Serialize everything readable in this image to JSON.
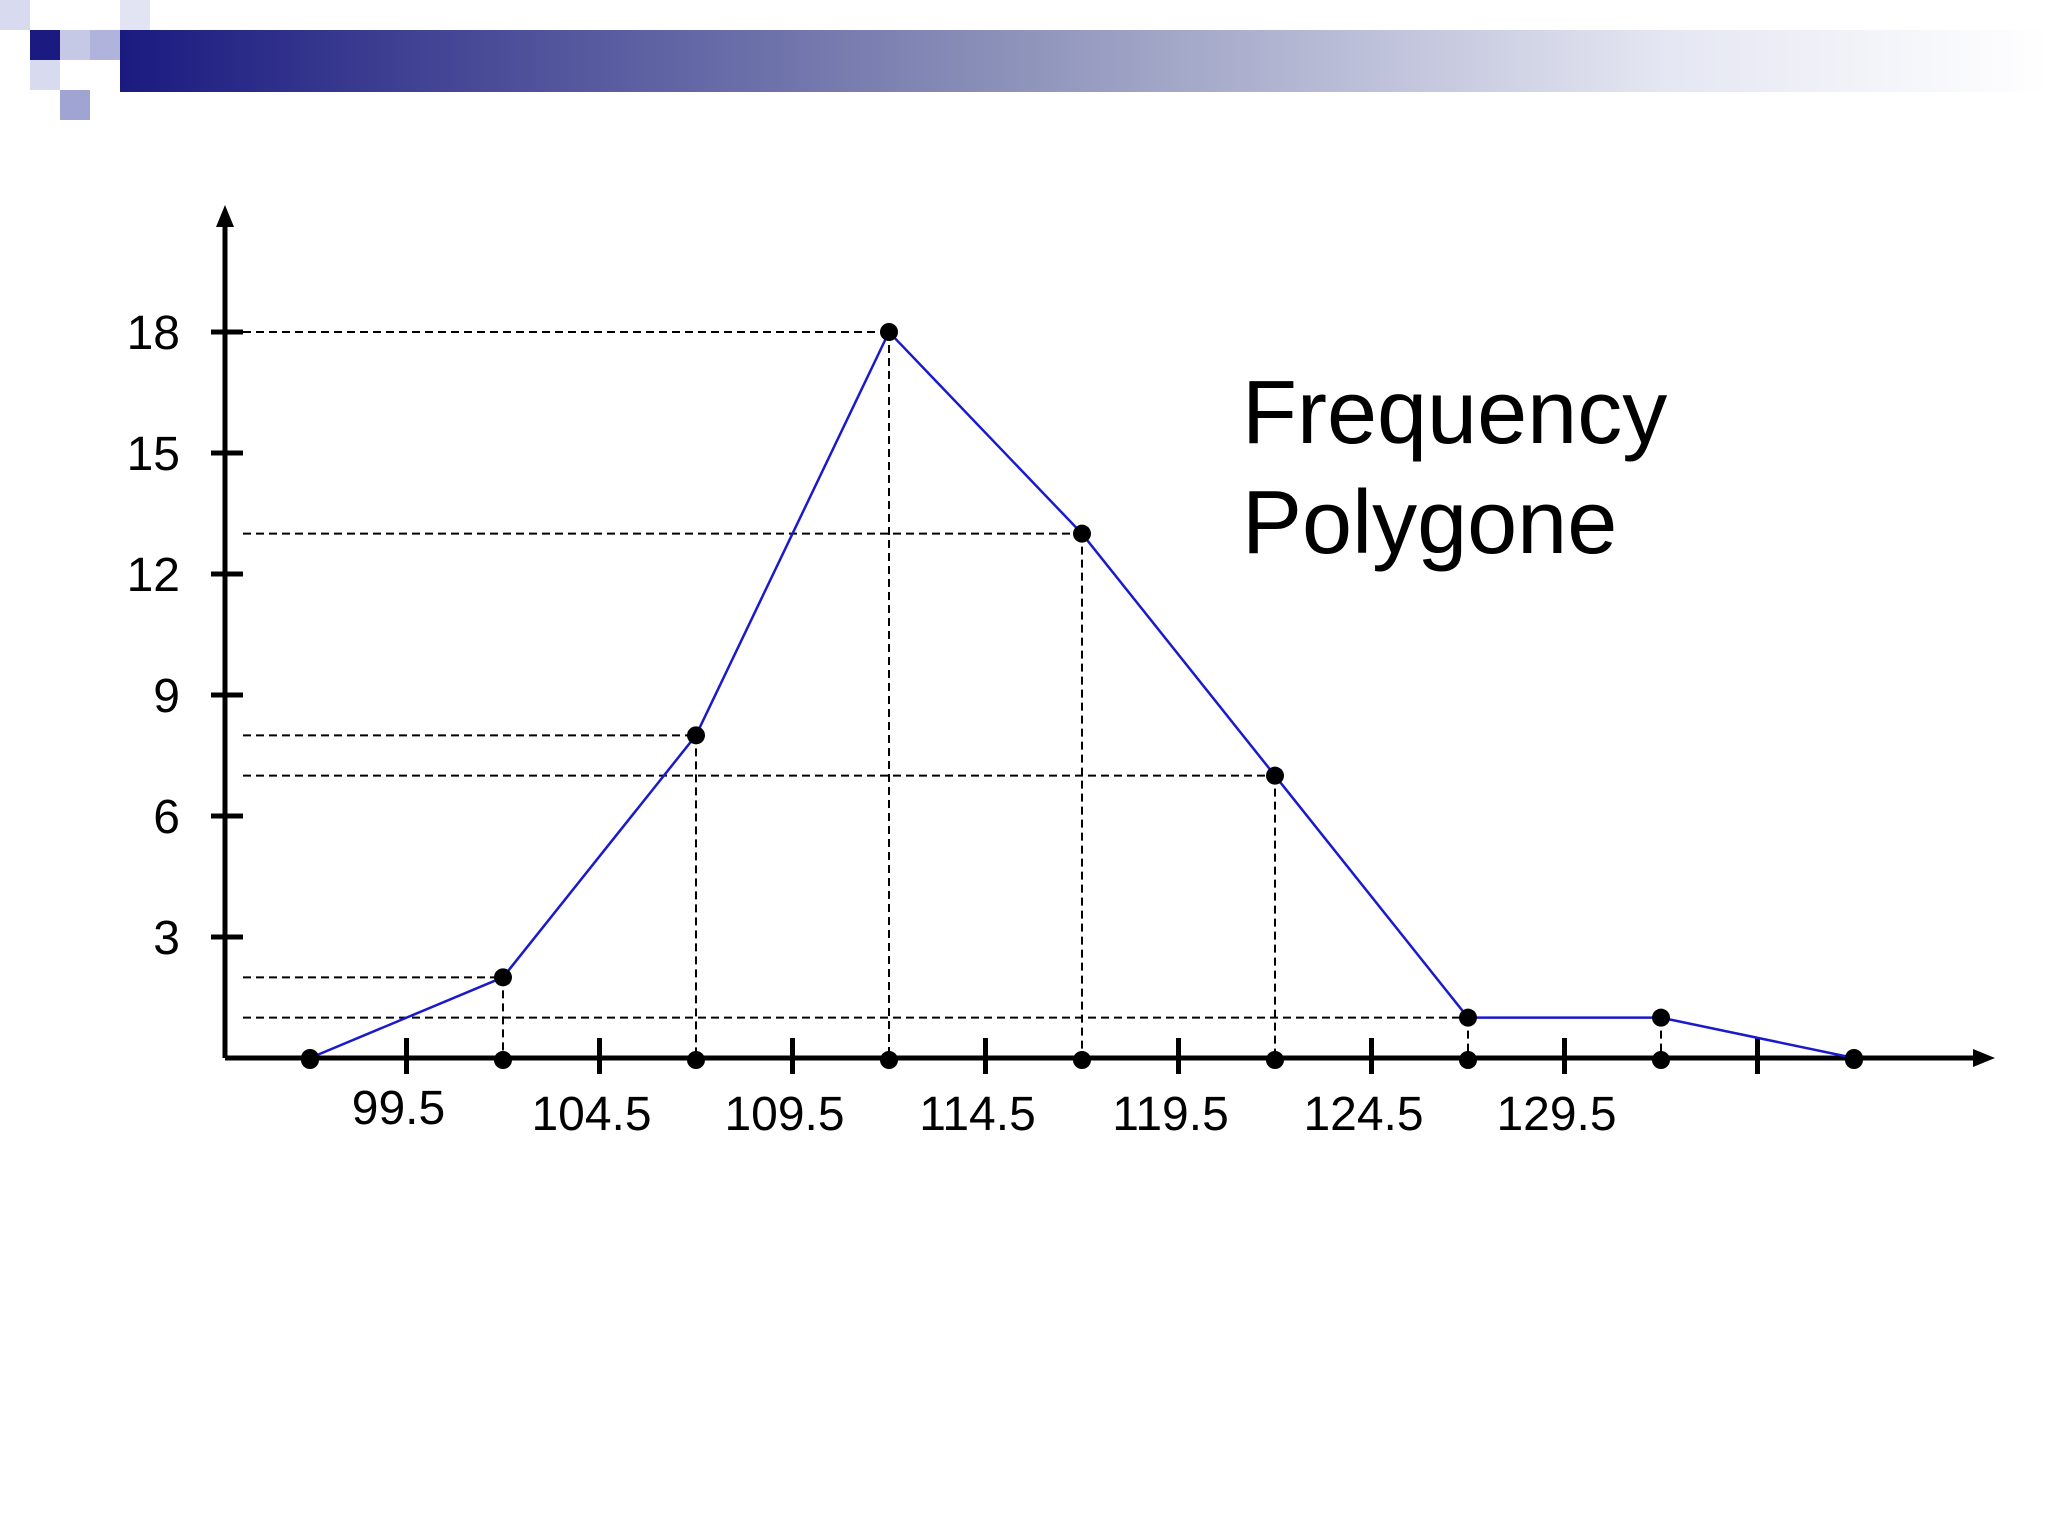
{
  "colors": {
    "line": "#1a1acc",
    "axis": "#000000",
    "guide": "#000000",
    "header_dark": "#1a1a80",
    "header_light": "#aab0d8"
  },
  "chart_data": {
    "type": "line",
    "title": [
      "Frequency",
      "Polygone"
    ],
    "xlabel": "",
    "ylabel": "",
    "x_tick_labels": [
      "99.5",
      "104.5",
      "109.5",
      "114.5",
      "119.5",
      "124.5",
      "129.5"
    ],
    "y_tick_labels": [
      "3",
      "6",
      "9",
      "12",
      "15",
      "18"
    ],
    "y_ticks": [
      3,
      6,
      9,
      12,
      15,
      18
    ],
    "ylim": [
      0,
      20
    ],
    "x_midpoints": [
      97,
      102,
      107,
      112,
      117,
      122,
      127,
      132,
      137
    ],
    "x_boundaries": [
      99.5,
      104.5,
      109.5,
      114.5,
      119.5,
      124.5,
      129.5,
      134.5
    ],
    "series": [
      {
        "x": [
          97,
          102,
          107,
          112,
          117,
          122,
          127,
          132,
          137
        ],
        "y": [
          0,
          2,
          8,
          18,
          13,
          7,
          1,
          1,
          0
        ]
      }
    ],
    "grid": false
  }
}
